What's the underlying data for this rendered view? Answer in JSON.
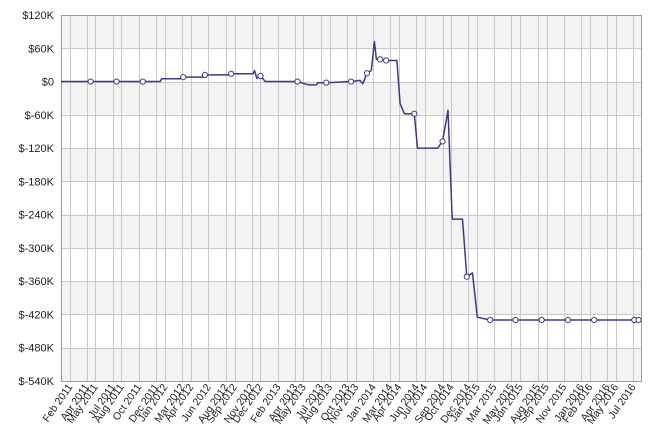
{
  "chart_data": {
    "type": "line",
    "title": "",
    "xlabel": "",
    "ylabel": "",
    "ylim": [
      -540000,
      120000
    ],
    "grid": true,
    "legend": "none",
    "colors": {
      "line": "#3a3a8c",
      "marker_fill": "#ffffff",
      "grid": "#c8c8c8",
      "band": "#f3f3f3",
      "axis_frame": "#9a9a9a"
    },
    "y_ticks": [
      {
        "value": 120000,
        "label": "$120K"
      },
      {
        "value": 60000,
        "label": "$60K"
      },
      {
        "value": 0,
        "label": "$0"
      },
      {
        "value": -60000,
        "label": "$-60K"
      },
      {
        "value": -120000,
        "label": "$-120K"
      },
      {
        "value": -180000,
        "label": "$-180K"
      },
      {
        "value": -240000,
        "label": "$-240K"
      },
      {
        "value": -300000,
        "label": "$-300K"
      },
      {
        "value": -360000,
        "label": "$-360K"
      },
      {
        "value": -420000,
        "label": "$-420K"
      },
      {
        "value": -480000,
        "label": "$-480K"
      },
      {
        "value": -540000,
        "label": "$-540K"
      }
    ],
    "x_start": "2011-01",
    "x_end": "2016-08",
    "x_ticks": [
      {
        "value": "2011-02",
        "label": "Feb 2011"
      },
      {
        "value": "2011-04",
        "label": "Apr 2011"
      },
      {
        "value": "2011-05",
        "label": "May 2011"
      },
      {
        "value": "2011-07",
        "label": "Jul 2011"
      },
      {
        "value": "2011-08",
        "label": "Aug 2011"
      },
      {
        "value": "2011-10",
        "label": "Oct 2011"
      },
      {
        "value": "2011-12",
        "label": "Dec 2011"
      },
      {
        "value": "2012-01",
        "label": "Jan 2012"
      },
      {
        "value": "2012-03",
        "label": "Mar 2012"
      },
      {
        "value": "2012-04",
        "label": "Apr 2012"
      },
      {
        "value": "2012-06",
        "label": "Jun 2012"
      },
      {
        "value": "2012-08",
        "label": "Aug 2012"
      },
      {
        "value": "2012-09",
        "label": "Sep 2012"
      },
      {
        "value": "2012-11",
        "label": "Nov 2012"
      },
      {
        "value": "2012-12",
        "label": "Dec 2012"
      },
      {
        "value": "2013-02",
        "label": "Feb 2013"
      },
      {
        "value": "2013-04",
        "label": "Apr 2013"
      },
      {
        "value": "2013-05",
        "label": "May 2013"
      },
      {
        "value": "2013-07",
        "label": "Jul 2013"
      },
      {
        "value": "2013-08",
        "label": "Aug 2013"
      },
      {
        "value": "2013-10",
        "label": "Oct 2013"
      },
      {
        "value": "2013-11",
        "label": "Nov 2013"
      },
      {
        "value": "2014-01",
        "label": "Jan 2014"
      },
      {
        "value": "2014-03",
        "label": "Mar 2014"
      },
      {
        "value": "2014-04",
        "label": "Apr 2014"
      },
      {
        "value": "2014-06",
        "label": "Jun 2014"
      },
      {
        "value": "2014-07",
        "label": "Jul 2014"
      },
      {
        "value": "2014-09",
        "label": "Sep 2014"
      },
      {
        "value": "2014-10",
        "label": "Oct 2014"
      },
      {
        "value": "2014-12",
        "label": "Dec 2014"
      },
      {
        "value": "2015-01",
        "label": "Jan 2015"
      },
      {
        "value": "2015-03",
        "label": "Mar 2015"
      },
      {
        "value": "2015-05",
        "label": "May 2015"
      },
      {
        "value": "2015-06",
        "label": "Jun 2015"
      },
      {
        "value": "2015-08",
        "label": "Aug 2015"
      },
      {
        "value": "2015-09",
        "label": "Sep 2015"
      },
      {
        "value": "2015-11",
        "label": "Nov 2015"
      },
      {
        "value": "2016-01",
        "label": "Jan 2016"
      },
      {
        "value": "2016-02",
        "label": "Feb 2016"
      },
      {
        "value": "2016-04",
        "label": "Apr 2016"
      },
      {
        "value": "2016-05",
        "label": "May 2016"
      },
      {
        "value": "2016-07",
        "label": "Jul 2016"
      }
    ],
    "series": [
      {
        "name": "",
        "points": [
          {
            "x": "2011-01-01",
            "y": 0,
            "marker": false
          },
          {
            "x": "2011-04-15",
            "y": 0,
            "marker": true
          },
          {
            "x": "2011-07-15",
            "y": 0,
            "marker": true
          },
          {
            "x": "2011-10-15",
            "y": 0,
            "marker": true
          },
          {
            "x": "2011-12-15",
            "y": 0,
            "marker": false
          },
          {
            "x": "2011-12-20",
            "y": 5000,
            "marker": false
          },
          {
            "x": "2012-03-01",
            "y": 5000,
            "marker": false
          },
          {
            "x": "2012-03-05",
            "y": 8000,
            "marker": true
          },
          {
            "x": "2012-05-15",
            "y": 8000,
            "marker": false
          },
          {
            "x": "2012-05-20",
            "y": 12000,
            "marker": true
          },
          {
            "x": "2012-08-15",
            "y": 12000,
            "marker": false
          },
          {
            "x": "2012-08-20",
            "y": 14000,
            "marker": true
          },
          {
            "x": "2012-11-05",
            "y": 14000,
            "marker": false
          },
          {
            "x": "2012-11-10",
            "y": 20000,
            "marker": false
          },
          {
            "x": "2012-11-18",
            "y": 6000,
            "marker": false
          },
          {
            "x": "2012-12-01",
            "y": 10000,
            "marker": true
          },
          {
            "x": "2012-12-18",
            "y": 0,
            "marker": false
          },
          {
            "x": "2013-04-10",
            "y": 0,
            "marker": true
          },
          {
            "x": "2013-05-05",
            "y": -4000,
            "marker": false
          },
          {
            "x": "2013-05-20",
            "y": -6000,
            "marker": false
          },
          {
            "x": "2013-06-15",
            "y": -6000,
            "marker": false
          },
          {
            "x": "2013-06-20",
            "y": -2000,
            "marker": false
          },
          {
            "x": "2013-07-20",
            "y": -2000,
            "marker": true
          },
          {
            "x": "2013-10-15",
            "y": 0,
            "marker": true
          },
          {
            "x": "2013-11-15",
            "y": 2000,
            "marker": false
          },
          {
            "x": "2013-11-25",
            "y": -4000,
            "marker": false
          },
          {
            "x": "2013-12-10",
            "y": 15000,
            "marker": true
          },
          {
            "x": "2013-12-25",
            "y": 20000,
            "marker": false
          },
          {
            "x": "2014-01-05",
            "y": 72000,
            "marker": false
          },
          {
            "x": "2014-01-12",
            "y": 40000,
            "marker": false
          },
          {
            "x": "2014-01-25",
            "y": 40000,
            "marker": true
          },
          {
            "x": "2014-02-15",
            "y": 38000,
            "marker": true
          },
          {
            "x": "2014-03-25",
            "y": 38000,
            "marker": false
          },
          {
            "x": "2014-04-05",
            "y": -40000,
            "marker": false
          },
          {
            "x": "2014-04-20",
            "y": -58000,
            "marker": false
          },
          {
            "x": "2014-05-25",
            "y": -58000,
            "marker": true
          },
          {
            "x": "2014-06-05",
            "y": -120000,
            "marker": false
          },
          {
            "x": "2014-08-15",
            "y": -120000,
            "marker": false
          },
          {
            "x": "2014-09-01",
            "y": -108000,
            "marker": true
          },
          {
            "x": "2014-09-20",
            "y": -52000,
            "marker": false
          },
          {
            "x": "2014-10-05",
            "y": -248000,
            "marker": false
          },
          {
            "x": "2014-11-10",
            "y": -248000,
            "marker": false
          },
          {
            "x": "2014-11-25",
            "y": -352000,
            "marker": true
          },
          {
            "x": "2014-12-15",
            "y": -345000,
            "marker": false
          },
          {
            "x": "2015-01-01",
            "y": -425000,
            "marker": false
          },
          {
            "x": "2015-02-15",
            "y": -430000,
            "marker": true
          },
          {
            "x": "2015-05-15",
            "y": -430000,
            "marker": true
          },
          {
            "x": "2015-08-15",
            "y": -430000,
            "marker": true
          },
          {
            "x": "2015-11-15",
            "y": -430000,
            "marker": true
          },
          {
            "x": "2016-02-15",
            "y": -430000,
            "marker": true
          },
          {
            "x": "2016-07-05",
            "y": -430000,
            "marker": true
          },
          {
            "x": "2016-07-20",
            "y": -430000,
            "marker": true
          }
        ]
      }
    ]
  }
}
